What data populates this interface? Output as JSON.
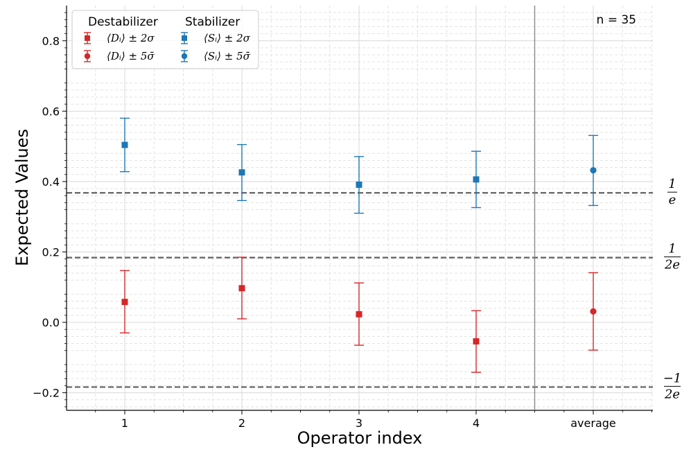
{
  "chart_data": {
    "type": "scatter",
    "annotation": "n = 35",
    "xlabel": "Operator index",
    "ylabel": "Expected Values",
    "categories": [
      "1",
      "2",
      "3",
      "4",
      "average"
    ],
    "ylim": [
      -0.25,
      0.9
    ],
    "yticks": [
      -0.2,
      0.0,
      0.2,
      0.4,
      0.6,
      0.8
    ],
    "ytick_labels": [
      "−0.2",
      "0.0",
      "0.2",
      "0.4",
      "0.6",
      "0.8"
    ],
    "grid": true,
    "separator_after_category": "4",
    "reference_lines": [
      {
        "value": 0.3679,
        "num": "1",
        "den": "e"
      },
      {
        "value": 0.1839,
        "num": "1",
        "den": "2e"
      },
      {
        "value": -0.1839,
        "num": "−1",
        "den": "2e"
      }
    ],
    "legend": {
      "position": "upper-left",
      "groups": [
        {
          "title": "Destabilizer",
          "entries": [
            {
              "label": "⟨Dᵢ⟩ ± 2σ",
              "marker": "square",
              "color": "#d62728"
            },
            {
              "label": "⟨Dᵢ⟩ ± 5σ̄",
              "marker": "circle",
              "color": "#d62728"
            }
          ]
        },
        {
          "title": "Stabilizer",
          "entries": [
            {
              "label": "⟨Sᵢ⟩ ± 2σ",
              "marker": "square",
              "color": "#1f77b4"
            },
            {
              "label": "⟨Sᵢ⟩ ± 5σ̄",
              "marker": "circle",
              "color": "#1f77b4"
            }
          ]
        }
      ]
    },
    "series": [
      {
        "name": "Stabilizer",
        "color": "#1f77b4",
        "points": [
          {
            "x": "1",
            "y": 0.504,
            "low": 0.428,
            "high": 0.58,
            "marker": "square"
          },
          {
            "x": "2",
            "y": 0.426,
            "low": 0.346,
            "high": 0.505,
            "marker": "square"
          },
          {
            "x": "3",
            "y": 0.391,
            "low": 0.31,
            "high": 0.471,
            "marker": "square"
          },
          {
            "x": "4",
            "y": 0.406,
            "low": 0.326,
            "high": 0.486,
            "marker": "square"
          },
          {
            "x": "average",
            "y": 0.432,
            "low": 0.332,
            "high": 0.531,
            "marker": "circle"
          }
        ]
      },
      {
        "name": "Destabilizer",
        "color": "#d62728",
        "points": [
          {
            "x": "1",
            "y": 0.058,
            "low": -0.03,
            "high": 0.147,
            "marker": "square"
          },
          {
            "x": "2",
            "y": 0.097,
            "low": 0.01,
            "high": 0.185,
            "marker": "square"
          },
          {
            "x": "3",
            "y": 0.023,
            "low": -0.065,
            "high": 0.112,
            "marker": "square"
          },
          {
            "x": "4",
            "y": -0.054,
            "low": -0.142,
            "high": 0.033,
            "marker": "square"
          },
          {
            "x": "average",
            "y": 0.031,
            "low": -0.079,
            "high": 0.141,
            "marker": "circle"
          }
        ]
      }
    ]
  }
}
